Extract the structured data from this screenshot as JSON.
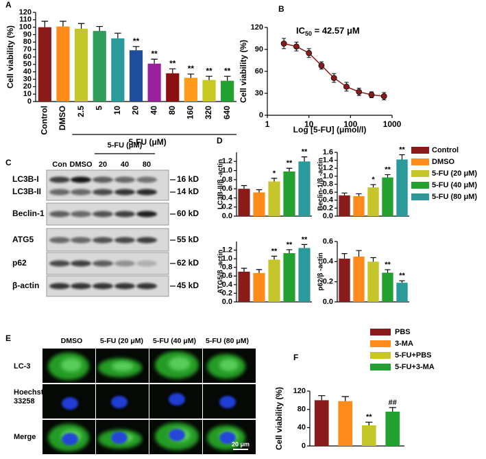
{
  "panel_labels": [
    "A",
    "B",
    "C",
    "D",
    "E",
    "F"
  ],
  "chart_data": [
    {
      "type": "bar",
      "ylabel": "Cell viability (%)",
      "group_label": "5-FU (μM)",
      "categories": [
        "Control",
        "DMSO",
        "2.5",
        "5",
        "10",
        "20",
        "40",
        "80",
        "160",
        "320",
        "640"
      ],
      "values": [
        100,
        101,
        98,
        95,
        85,
        69,
        51,
        38,
        32,
        29,
        28
      ],
      "errors": [
        8,
        7,
        7,
        6,
        7,
        5,
        6,
        6,
        5,
        5,
        6
      ],
      "annotations": [
        null,
        null,
        null,
        null,
        null,
        "**",
        "**",
        "**",
        "**",
        "**",
        "**"
      ],
      "colors": [
        "#8b1a1a",
        "#ff8c1a",
        "#c6c62a",
        "#2f9e5a",
        "#2a9a9a",
        "#1f4f9c",
        "#9a1f9a",
        "#8b1010",
        "#ff9a1a",
        "#c8c820",
        "#22a030"
      ],
      "ylim": [
        0,
        120
      ],
      "yticks": [
        0,
        10,
        20,
        30,
        40,
        50,
        60,
        70,
        80,
        90,
        100,
        110,
        120
      ]
    },
    {
      "type": "line",
      "ylabel": "Cell viability (%)",
      "xlabel": "Log [5-FU] (μmol/l)",
      "annotation": [
        "IC",
        "50",
        " = 42.57 μM"
      ],
      "x": [
        2.5,
        5,
        10,
        20,
        40,
        80,
        160,
        320,
        640
      ],
      "values": [
        98,
        94,
        85,
        68,
        51,
        39,
        32,
        28,
        26
      ],
      "errors": [
        7,
        6,
        6,
        5,
        6,
        6,
        5,
        4,
        5
      ],
      "color": "#8b1a1a",
      "xscale": "log",
      "xlim": [
        1,
        1000
      ],
      "xticks": [
        1,
        10,
        100,
        1000
      ],
      "ylim": [
        0,
        120
      ],
      "yticks": [
        0,
        30,
        60,
        90,
        120
      ]
    },
    {
      "type": "bar",
      "ylabel": "LC3B-II/β -actin",
      "values": [
        0.6,
        0.52,
        0.76,
        0.98,
        1.2
      ],
      "errors": [
        0.07,
        0.06,
        0.07,
        0.07,
        0.1
      ],
      "annotations": [
        null,
        null,
        "*",
        "**",
        "**"
      ],
      "colors": [
        "#8b1a1a",
        "#ff8c1a",
        "#c6c62a",
        "#22a030",
        "#2a9a9a"
      ],
      "ylim": [
        0,
        1.4
      ],
      "yticks": [
        {
          "value": 0,
          "label": "0.0"
        },
        0.2,
        0.4,
        0.6,
        0.8,
        {
          "value": 1,
          "label": "1.0"
        },
        1.2
      ]
    },
    {
      "type": "bar",
      "ylabel": "Beclin-1/β -actin",
      "values": [
        0.52,
        0.5,
        0.72,
        0.97,
        1.42
      ],
      "errors": [
        0.06,
        0.06,
        0.07,
        0.07,
        0.12
      ],
      "annotations": [
        null,
        null,
        "*",
        "**",
        "**"
      ],
      "colors": [
        "#8b1a1a",
        "#ff8c1a",
        "#c6c62a",
        "#22a030",
        "#2a9a9a"
      ],
      "ylim": [
        0,
        1.6
      ],
      "yticks": [
        {
          "value": 0,
          "label": "0.0"
        },
        0.2,
        0.4,
        0.6,
        0.8,
        {
          "value": 1,
          "label": "1.0"
        },
        1.2,
        1.4,
        1.6
      ]
    },
    {
      "type": "bar",
      "ylabel": "ATG5/β -actin",
      "values": [
        0.7,
        0.67,
        0.98,
        1.13,
        1.25
      ],
      "errors": [
        0.08,
        0.08,
        0.08,
        0.08,
        0.08
      ],
      "annotations": [
        null,
        null,
        "**",
        "**",
        "**"
      ],
      "colors": [
        "#8b1a1a",
        "#ff8c1a",
        "#c6c62a",
        "#22a030",
        "#2a9a9a"
      ],
      "ylim": [
        0,
        1.4
      ],
      "yticks": [
        {
          "value": 0,
          "label": "0.0"
        },
        0.2,
        0.4,
        0.6,
        0.8,
        {
          "value": 1,
          "label": "1.0"
        },
        1.2
      ]
    },
    {
      "type": "bar",
      "ylabel": "p62/β -actin",
      "values": [
        0.43,
        0.45,
        0.4,
        0.29,
        0.19
      ],
      "errors": [
        0.05,
        0.06,
        0.04,
        0.03,
        0.02
      ],
      "annotations": [
        null,
        null,
        null,
        "**",
        "**"
      ],
      "colors": [
        "#8b1a1a",
        "#ff8c1a",
        "#c6c62a",
        "#22a030",
        "#2a9a9a"
      ],
      "ylim": [
        0,
        0.6
      ],
      "yticks": [
        {
          "value": 0,
          "label": "0.0"
        },
        0.2,
        0.4,
        0.6
      ]
    },
    {
      "type": "bar",
      "ylabel": "Cell viability (%)",
      "categories": [
        "PBS",
        "3-MA",
        "5-FU+PBS",
        "5-FU+3-MA"
      ],
      "values": [
        100,
        98,
        45,
        75
      ],
      "errors": [
        10,
        10,
        7,
        9
      ],
      "annotations": [
        null,
        null,
        "**",
        "##"
      ],
      "colors": [
        "#8b1a1a",
        "#ff8c1a",
        "#c6c62a",
        "#22a030"
      ],
      "ylim": [
        0,
        120
      ],
      "yticks": [
        0,
        40,
        80,
        120
      ]
    }
  ],
  "legend_d": [
    "Control",
    "DMSO",
    "5-FU (20 μM)",
    "5-FU (40 μM)",
    "5-FU (80 μM)"
  ],
  "blot": {
    "title": "5-FU (μM)",
    "lanes": [
      "Con",
      "DMSO",
      "20",
      "40",
      "80"
    ],
    "rows": [
      "LC3B-I",
      "LC3B-II",
      "Beclin-1",
      "ATG5",
      "p62",
      "β-actin"
    ],
    "kd": [
      "16 kD",
      "14 kD",
      "60 kD",
      "55 kD",
      "62 kD",
      "45 kD"
    ]
  },
  "micrographs": {
    "columns": [
      "DMSO",
      "5-FU (20 μM)",
      "5-FU (40 μM)",
      "5-FU (80 μM)"
    ],
    "rows": [
      [
        "LC-3"
      ],
      [
        "Hoechst",
        "33258"
      ],
      [
        "Merge"
      ]
    ],
    "scale_bar": "20 μm"
  }
}
